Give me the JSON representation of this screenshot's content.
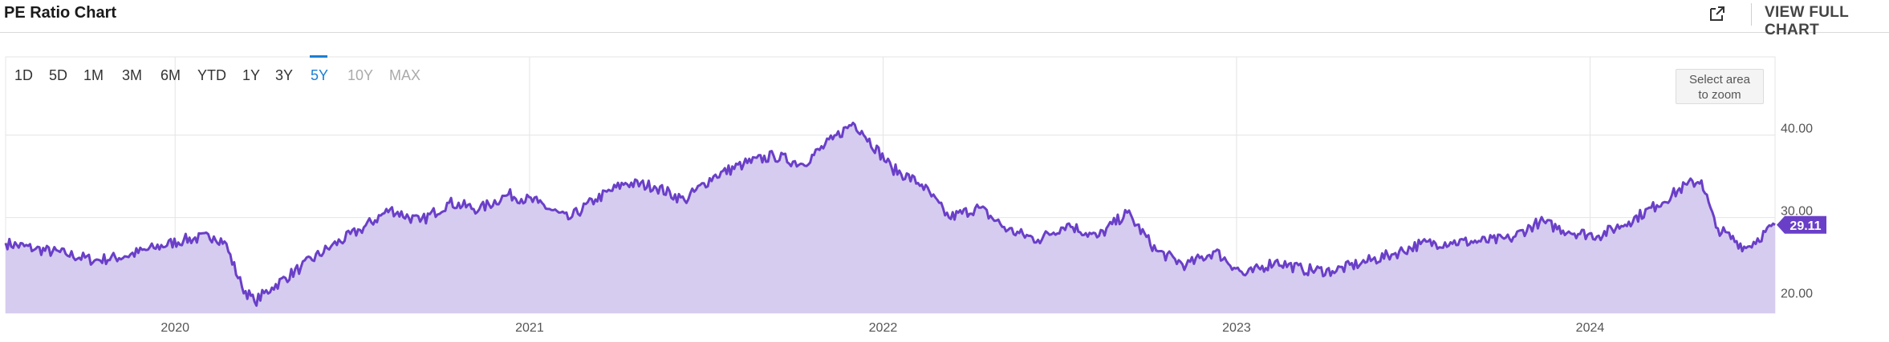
{
  "header": {
    "title": "PE Ratio Chart",
    "view_full_label": "VIEW FULL CHART"
  },
  "range_buttons": [
    {
      "label": "1D",
      "state": "enabled"
    },
    {
      "label": "5D",
      "state": "enabled"
    },
    {
      "label": "1M",
      "state": "enabled"
    },
    {
      "label": "3M",
      "state": "enabled"
    },
    {
      "label": "6M",
      "state": "enabled"
    },
    {
      "label": "YTD",
      "state": "enabled"
    },
    {
      "label": "1Y",
      "state": "enabled"
    },
    {
      "label": "3Y",
      "state": "enabled"
    },
    {
      "label": "5Y",
      "state": "active"
    },
    {
      "label": "10Y",
      "state": "disabled"
    },
    {
      "label": "MAX",
      "state": "disabled"
    }
  ],
  "zoom_hint": {
    "line1": "Select area",
    "line2": "to zoom"
  },
  "colors": {
    "line": "#6a3fc8",
    "fill": "#d6ccef",
    "active_range": "#1a7fd4",
    "badge": "#6a3fc8"
  },
  "chart_data": {
    "type": "area",
    "title": "PE Ratio Chart",
    "xlabel": "",
    "ylabel": "",
    "xlim": [
      "2019-07-10",
      "2024-07-10"
    ],
    "ylim": [
      18.4,
      49.5
    ],
    "y_axis_side": "right",
    "grid": true,
    "x_tick_labels": [
      "2020",
      "2021",
      "2022",
      "2023",
      "2024"
    ],
    "y_tick_labels": [
      "20.00",
      "30.00",
      "40.00"
    ],
    "last_value_label": "29.11",
    "series": [
      {
        "x": [
          "2019-07-10",
          "2019-08-10",
          "2019-09-10",
          "2019-10-10",
          "2019-11-10",
          "2019-12-10",
          "2020-01-10",
          "2020-02-10",
          "2020-02-21",
          "2020-03-10",
          "2020-03-23",
          "2020-04-10",
          "2020-05-10",
          "2020-06-10",
          "2020-07-10",
          "2020-08-10",
          "2020-09-10",
          "2020-10-10",
          "2020-11-10",
          "2020-12-10",
          "2021-01-10",
          "2021-02-10",
          "2021-03-10",
          "2021-04-10",
          "2021-05-10",
          "2021-06-10",
          "2021-07-10",
          "2021-08-10",
          "2021-09-10",
          "2021-10-10",
          "2021-11-10",
          "2021-12-01",
          "2021-12-10",
          "2022-01-10",
          "2022-02-10",
          "2022-03-10",
          "2022-04-10",
          "2022-05-10",
          "2022-06-10",
          "2022-07-10",
          "2022-08-10",
          "2022-09-10",
          "2022-10-10",
          "2022-11-10",
          "2022-12-10",
          "2023-01-10",
          "2023-02-10",
          "2023-03-10",
          "2023-04-10",
          "2023-05-10",
          "2023-06-10",
          "2023-07-10",
          "2023-08-10",
          "2023-09-10",
          "2023-10-10",
          "2023-11-10",
          "2023-12-10",
          "2024-01-10",
          "2024-02-10",
          "2024-03-10",
          "2024-04-10",
          "2024-04-25",
          "2024-05-10",
          "2024-06-10",
          "2024-07-10"
        ],
        "values": [
          26.9,
          26.2,
          25.6,
          24.8,
          25.3,
          26.3,
          27.3,
          27.7,
          27.1,
          21.6,
          19.8,
          21.5,
          24.0,
          26.5,
          28.5,
          31.0,
          29.5,
          31.8,
          31.0,
          32.8,
          31.8,
          29.8,
          32.2,
          34.2,
          33.8,
          32.1,
          35.0,
          36.5,
          37.5,
          36.5,
          39.5,
          41.5,
          40.5,
          36.0,
          34.0,
          30.0,
          31.2,
          28.5,
          27.3,
          29.2,
          27.6,
          30.6,
          26.0,
          24.2,
          25.9,
          23.0,
          24.7,
          23.7,
          23.5,
          24.5,
          25.5,
          26.8,
          27.0,
          27.1,
          27.4,
          29.5,
          28.3,
          27.8,
          29.5,
          31.5,
          34.0,
          34.5,
          28.8,
          26.3,
          29.11
        ]
      }
    ]
  }
}
